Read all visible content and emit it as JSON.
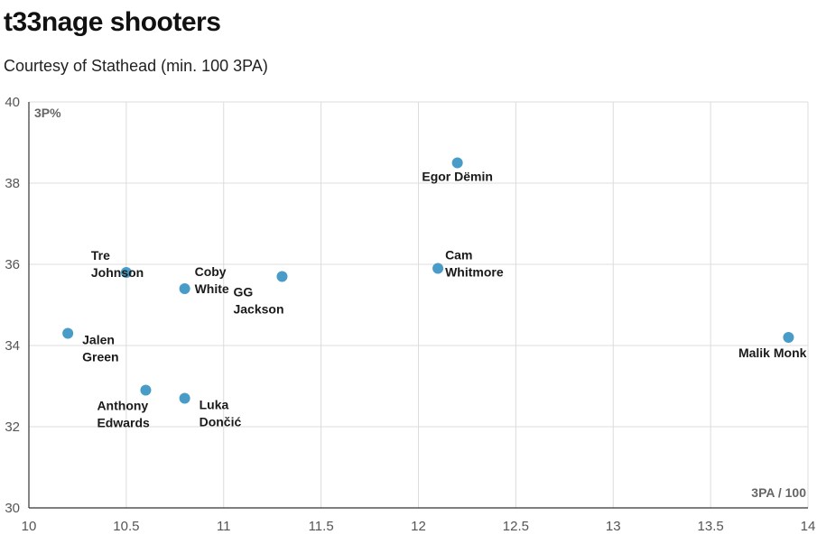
{
  "chart_data": {
    "type": "scatter",
    "title": "t33nage shooters",
    "subtitle": "Courtesy of Stathead (min. 100 3PA)",
    "xlabel": "3PA / 100",
    "ylabel": "3P%",
    "xlim": [
      10,
      14
    ],
    "ylim": [
      30,
      40
    ],
    "x_ticks": [
      "10",
      "10.5",
      "11",
      "11.5",
      "12",
      "12.5",
      "13",
      "13.5",
      "14"
    ],
    "y_ticks": [
      "30",
      "32",
      "34",
      "36",
      "38",
      "40"
    ],
    "grid": true,
    "point_color": "#4a9cc8",
    "points": [
      {
        "label": [
          "Egor Dëmin"
        ],
        "x": 12.2,
        "y": 38.5,
        "label_pos": "below"
      },
      {
        "label": [
          "Tre",
          "Johnson"
        ],
        "x": 10.5,
        "y": 35.8,
        "label_pos": "left"
      },
      {
        "label": [
          "Coby",
          "White"
        ],
        "x": 10.8,
        "y": 35.4,
        "label_pos": "right-up"
      },
      {
        "label": [
          "GG",
          "Jackson"
        ],
        "x": 11.3,
        "y": 35.7,
        "label_pos": "below-left"
      },
      {
        "label": [
          "Cam",
          "Whitmore"
        ],
        "x": 12.1,
        "y": 35.9,
        "label_pos": "right"
      },
      {
        "label": [
          "Jalen",
          "Green"
        ],
        "x": 10.2,
        "y": 34.3,
        "label_pos": "right-down"
      },
      {
        "label": [
          "Malik Monk"
        ],
        "x": 13.9,
        "y": 34.2,
        "label_pos": "below-left"
      },
      {
        "label": [
          "Anthony",
          "Edwards"
        ],
        "x": 10.6,
        "y": 32.9,
        "label_pos": "below-left"
      },
      {
        "label": [
          "Luka",
          "Dončić"
        ],
        "x": 10.8,
        "y": 32.7,
        "label_pos": "right-down"
      }
    ]
  }
}
